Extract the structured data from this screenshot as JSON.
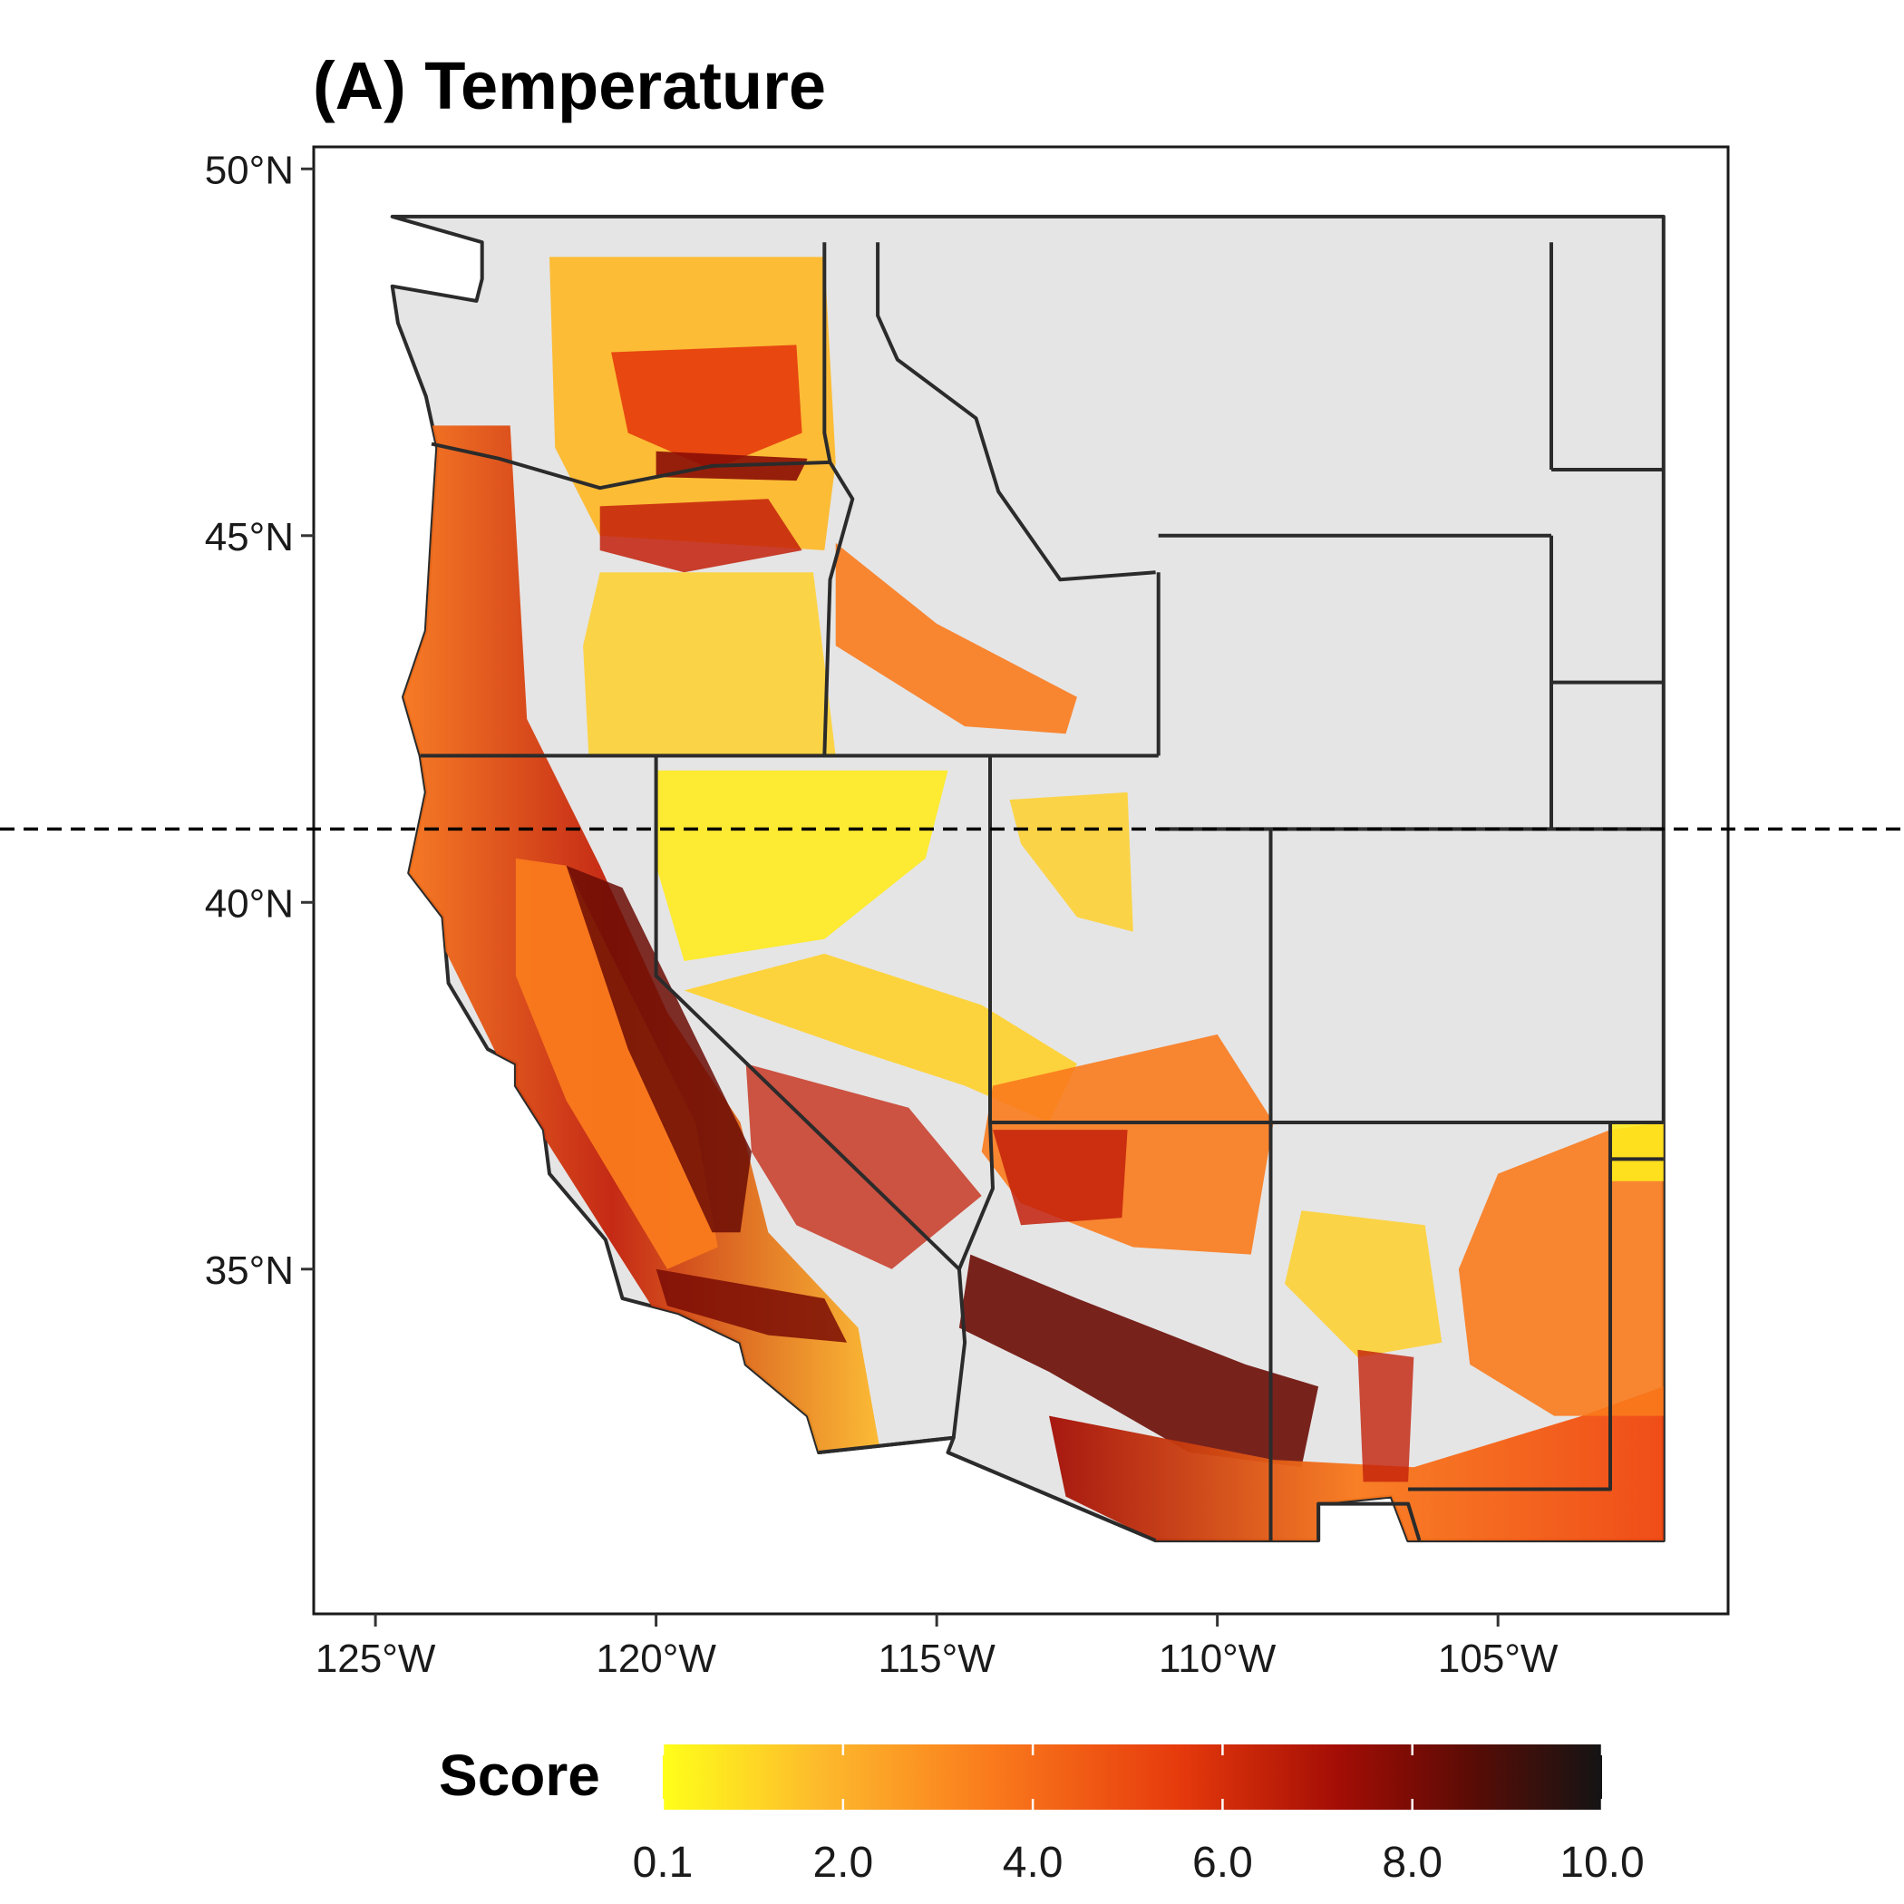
{
  "title": "(A) Temperature",
  "map": {
    "type": "choropleth-raster",
    "variable": "Score",
    "region_bounds": {
      "lon": [
        -125,
        -102.05
      ],
      "lat": [
        31.3,
        49.4
      ]
    },
    "x_range": [
      -126.1,
      -100.9
    ],
    "y_range": [
      30.3,
      50.3
    ],
    "x_ticks": [
      -125,
      -120,
      -115,
      -110,
      -105
    ],
    "x_tick_labels": [
      "125°W",
      "120°W",
      "115°W",
      "110°W",
      "105°W"
    ],
    "y_ticks": [
      50,
      45,
      40,
      35
    ],
    "y_tick_labels": [
      "50°N",
      "45°N",
      "40°N",
      "35°N"
    ],
    "reference_line_lat": 41,
    "reference_line_style": "dashed",
    "no_data_color": "#e5e5e5",
    "border_color": "#2b2b2b"
  },
  "legend": {
    "title": "Score",
    "min": 0.1,
    "max": 10.0,
    "ticks": [
      0.1,
      2.0,
      4.0,
      6.0,
      8.0,
      10.0
    ],
    "tick_labels": [
      "0.1",
      "2.0",
      "4.0",
      "6.0",
      "8.0",
      "10.0"
    ],
    "colors": [
      "#ffff1a",
      "#fdb92c",
      "#fa7a1c",
      "#e63a0c",
      "#a30d05",
      "#5a0c05",
      "#141414"
    ]
  }
}
